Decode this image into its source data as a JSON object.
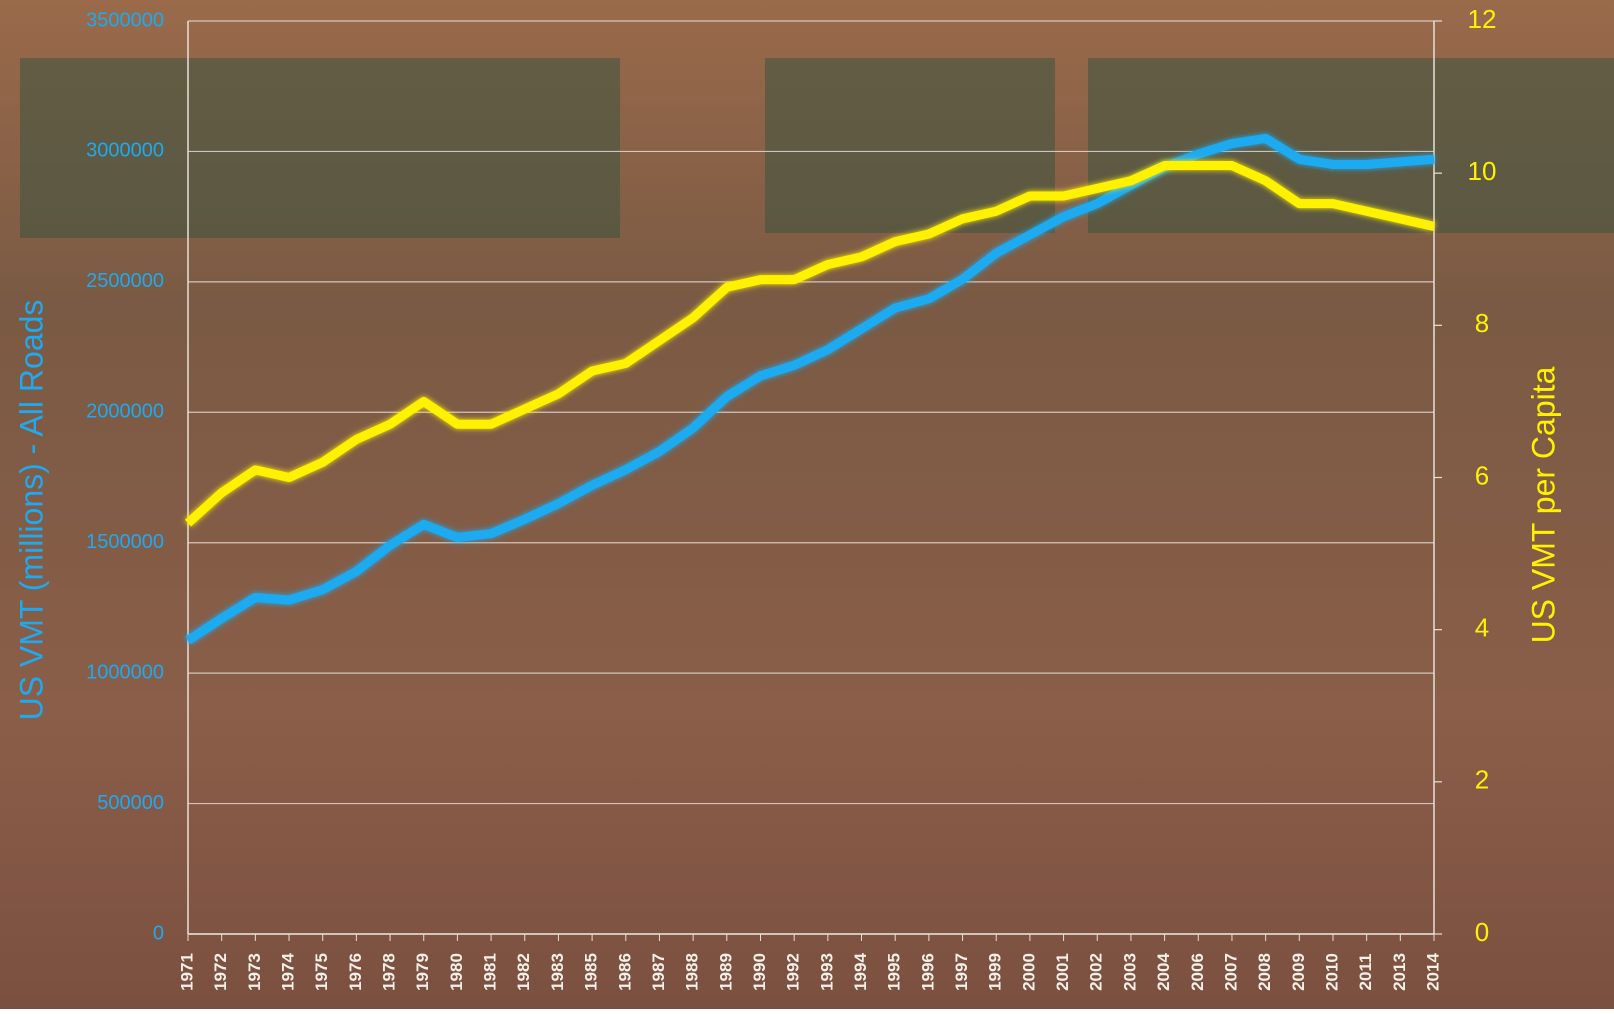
{
  "chart_data": {
    "type": "line",
    "y_label": "US VMT (millions) - All Roads",
    "y2_label": "US VMT per Capita",
    "categories": [
      "1971",
      "1972",
      "1973",
      "1974",
      "1975",
      "1976",
      "1978",
      "1979",
      "1980",
      "1981",
      "1982",
      "1983",
      "1985",
      "1986",
      "1987",
      "1988",
      "1989",
      "1990",
      "1992",
      "1993",
      "1994",
      "1995",
      "1996",
      "1997",
      "1999",
      "2000",
      "2001",
      "2002",
      "2003",
      "2004",
      "2006",
      "2007",
      "2008",
      "2009",
      "2010",
      "2011",
      "2013",
      "2014"
    ],
    "series": [
      {
        "name": "US VMT (millions) - All Roads",
        "color": "#1eaaf0",
        "axis": "y",
        "values": [
          1125000,
          1210000,
          1290000,
          1280000,
          1320000,
          1390000,
          1490000,
          1570000,
          1520000,
          1535000,
          1590000,
          1650000,
          1720000,
          1780000,
          1850000,
          1940000,
          2060000,
          2140000,
          2180000,
          2240000,
          2320000,
          2400000,
          2435000,
          2510000,
          2610000,
          2680000,
          2750000,
          2800000,
          2870000,
          2940000,
          2990000,
          3030000,
          3050000,
          2970000,
          2950000,
          2950000,
          2960000,
          2970000
        ]
      },
      {
        "name": "US VMT per Capita",
        "color": "#fff200",
        "axis": "y2",
        "values": [
          5.4,
          5.8,
          6.1,
          6.0,
          6.2,
          6.5,
          6.7,
          7.0,
          6.7,
          6.7,
          6.9,
          7.1,
          7.4,
          7.5,
          7.8,
          8.1,
          8.5,
          8.6,
          8.6,
          8.8,
          8.9,
          9.1,
          9.2,
          9.4,
          9.5,
          9.7,
          9.7,
          9.8,
          9.9,
          10.1,
          10.1,
          10.1,
          9.9,
          9.6,
          9.6,
          9.5,
          9.4,
          9.3
        ]
      }
    ],
    "ylim": [
      0,
      3500000
    ],
    "yticks": [
      0,
      500000,
      1000000,
      1500000,
      2000000,
      2500000,
      3000000,
      3500000
    ],
    "y2lim": [
      0,
      12
    ],
    "y2ticks": [
      0,
      2,
      4,
      6,
      8,
      10,
      12
    ],
    "grid": true
  }
}
